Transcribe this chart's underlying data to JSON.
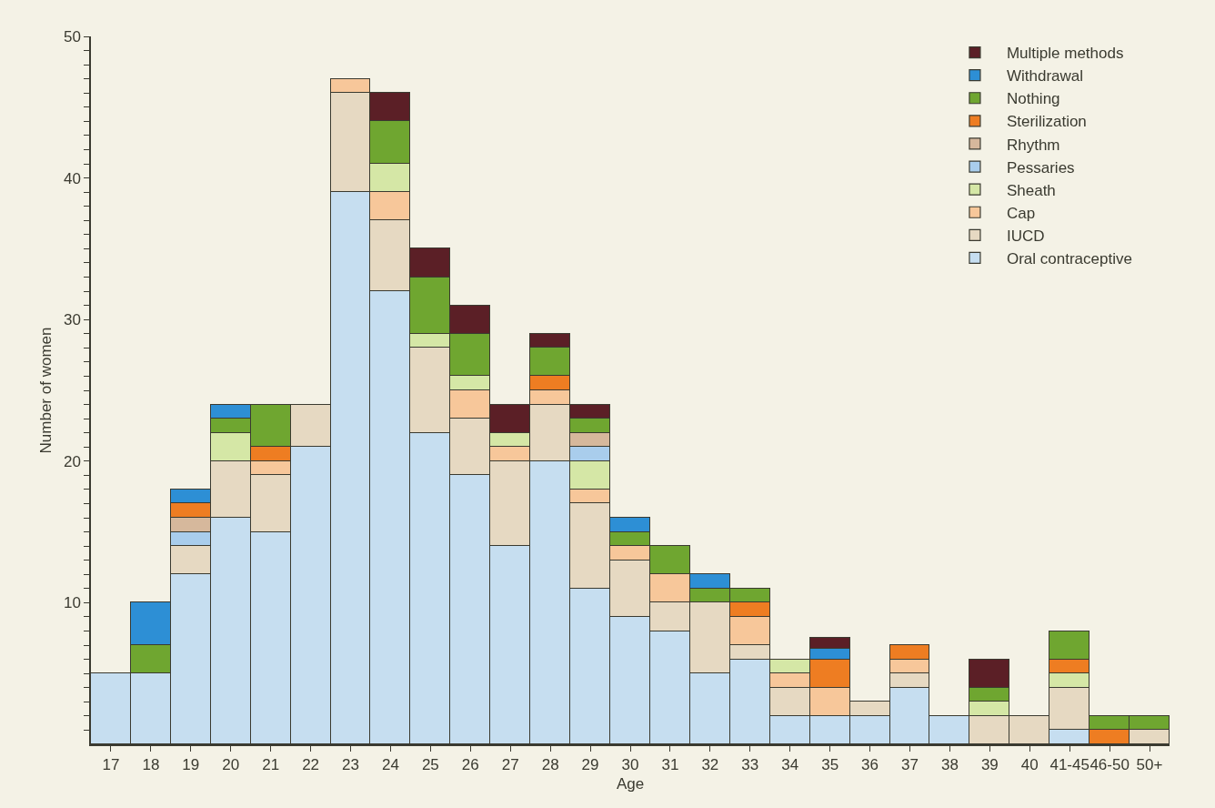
{
  "chart_data": {
    "type": "bar",
    "stacked": true,
    "xlabel": "Age",
    "ylabel": "Number of women",
    "categories": [
      "17",
      "18",
      "19",
      "20",
      "21",
      "22",
      "23",
      "24",
      "25",
      "26",
      "27",
      "28",
      "29",
      "30",
      "31",
      "32",
      "33",
      "34",
      "35",
      "36",
      "37",
      "38",
      "39",
      "40",
      "41-45",
      "46-50",
      "50+"
    ],
    "series": [
      {
        "name": "Oral contraceptive",
        "color": "#c6def0",
        "values": [
          5,
          5,
          12,
          16,
          15,
          21,
          39,
          32,
          22,
          19,
          14,
          20,
          11,
          9,
          8,
          5,
          6,
          2,
          2,
          2,
          4,
          2,
          null,
          null,
          1,
          null,
          null
        ]
      },
      {
        "name": "IUCD",
        "color": "#e6d9c2",
        "values": [
          null,
          null,
          2,
          4,
          4,
          3,
          7,
          5,
          6,
          4,
          6,
          4,
          6,
          4,
          2,
          5,
          1,
          2,
          null,
          1,
          1,
          null,
          2,
          2,
          3,
          null,
          1
        ]
      },
      {
        "name": "Cap",
        "color": "#f7c79a",
        "values": [
          null,
          null,
          null,
          null,
          1,
          null,
          1,
          2,
          null,
          2,
          1,
          1,
          1,
          1,
          2,
          null,
          2,
          1,
          2,
          null,
          1,
          null,
          null,
          null,
          null,
          null,
          null
        ]
      },
      {
        "name": "Sheath",
        "color": "#d5e7a6",
        "values": [
          null,
          null,
          null,
          2,
          null,
          null,
          null,
          2,
          1,
          1,
          1,
          null,
          2,
          null,
          null,
          null,
          null,
          1,
          null,
          null,
          null,
          null,
          1,
          null,
          1,
          null,
          null
        ]
      },
      {
        "name": "Pessaries",
        "color": "#a9cdec",
        "values": [
          null,
          null,
          1,
          null,
          null,
          null,
          null,
          null,
          null,
          null,
          null,
          null,
          1,
          null,
          null,
          null,
          null,
          null,
          null,
          null,
          null,
          null,
          null,
          null,
          null,
          null,
          null
        ]
      },
      {
        "name": "Rhythm",
        "color": "#d6b89c",
        "values": [
          null,
          null,
          1,
          null,
          null,
          null,
          null,
          null,
          null,
          null,
          null,
          null,
          1,
          null,
          null,
          null,
          null,
          null,
          null,
          null,
          null,
          null,
          null,
          null,
          null,
          null,
          null
        ]
      },
      {
        "name": "Sterilization",
        "color": "#ee7d22",
        "values": [
          null,
          null,
          1,
          null,
          1,
          null,
          null,
          null,
          null,
          null,
          null,
          1,
          null,
          null,
          null,
          null,
          1,
          null,
          2,
          null,
          1,
          null,
          null,
          null,
          1,
          1,
          null
        ]
      },
      {
        "name": "Nothing",
        "color": "#6fa630",
        "values": [
          null,
          2,
          null,
          1,
          3,
          null,
          null,
          3,
          4,
          3,
          null,
          2,
          1,
          1,
          2,
          1,
          1,
          null,
          null,
          null,
          null,
          null,
          1,
          null,
          2,
          1,
          1
        ]
      },
      {
        "name": "Withdrawal",
        "color": "#2d8fd5",
        "values": [
          null,
          3,
          1,
          1,
          null,
          null,
          null,
          null,
          null,
          null,
          null,
          null,
          null,
          1,
          null,
          1,
          null,
          null,
          0.75,
          null,
          null,
          null,
          null,
          null,
          null,
          null,
          null
        ]
      },
      {
        "name": "Multiple methods",
        "color": "#5b1f26",
        "values": [
          null,
          null,
          null,
          null,
          null,
          null,
          null,
          2,
          2,
          2,
          2,
          1,
          1,
          null,
          null,
          null,
          null,
          null,
          0.75,
          null,
          null,
          null,
          2,
          null,
          null,
          null,
          null
        ]
      }
    ],
    "ylim": [
      0,
      50
    ],
    "yticks": [
      {
        "value": 1,
        "label": null
      },
      {
        "value": 2,
        "label": null
      },
      {
        "value": 3,
        "label": null
      },
      {
        "value": 4,
        "label": null
      },
      {
        "value": 5,
        "label": null
      },
      {
        "value": 6,
        "label": null
      },
      {
        "value": 7,
        "label": null
      },
      {
        "value": 8,
        "label": null
      },
      {
        "value": 9,
        "label": null
      },
      10,
      {
        "value": 11,
        "label": null
      },
      {
        "value": 12,
        "label": null
      },
      {
        "value": 13,
        "label": null
      },
      {
        "value": 14,
        "label": null
      },
      {
        "value": 15,
        "label": null
      },
      {
        "value": 16,
        "label": null
      },
      {
        "value": 17,
        "label": null
      },
      {
        "value": 18,
        "label": null
      },
      {
        "value": 19,
        "label": null
      },
      20,
      {
        "value": 21,
        "label": null
      },
      {
        "value": 22,
        "label": null
      },
      {
        "value": 23,
        "label": null
      },
      {
        "value": 24,
        "label": null
      },
      {
        "value": 25,
        "label": null
      },
      {
        "value": 26,
        "label": null
      },
      {
        "value": 27,
        "label": null
      },
      {
        "value": 28,
        "label": null
      },
      {
        "value": 29,
        "label": null
      },
      30,
      {
        "value": 31,
        "label": null
      },
      {
        "value": 32,
        "label": null
      },
      {
        "value": 33,
        "label": null
      },
      {
        "value": 34,
        "label": null
      },
      {
        "value": 35,
        "label": null
      },
      {
        "value": 36,
        "label": null
      },
      {
        "value": 37,
        "label": null
      },
      {
        "value": 38,
        "label": null
      },
      {
        "value": 39,
        "label": null
      },
      40,
      {
        "value": 41,
        "label": null
      },
      {
        "value": 42,
        "label": null
      },
      {
        "value": 43,
        "label": null
      },
      {
        "value": 44,
        "label": null
      },
      {
        "value": 45,
        "label": null
      },
      {
        "value": 46,
        "label": null
      },
      {
        "value": 47,
        "label": null
      },
      {
        "value": 48,
        "label": null
      },
      {
        "value": 49,
        "label": null
      },
      50
    ],
    "grid": false,
    "legend": "top right"
  }
}
